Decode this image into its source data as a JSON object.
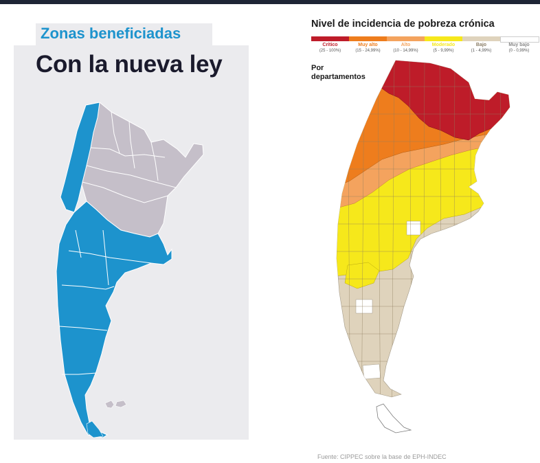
{
  "left": {
    "title": "Zonas beneficiadas",
    "subtitle": "Con la nueva ley",
    "colors": {
      "benefited": "#1d93cd",
      "other": "#c5bfc9",
      "background": "#ebebee"
    }
  },
  "right": {
    "title": "Nivel de incidencia de pobreza crónica",
    "subtitle_line1": "Por",
    "subtitle_line2": "departamentos",
    "legend": [
      {
        "label": "Crítico",
        "range": "(25 - 100%)",
        "color": "#be1c29"
      },
      {
        "label": "Muy alto",
        "range": "(15 - 24,99%)",
        "color": "#ee7d1d"
      },
      {
        "label": "Alto",
        "range": "(10 - 14,99%)",
        "color": "#f4a35e"
      },
      {
        "label": "Moderado",
        "range": "(5 - 9,99%)",
        "color": "#f6e81b"
      },
      {
        "label": "Bajo",
        "range": "(1 - 4,99%)",
        "color": "#dfd3bc"
      },
      {
        "label": "Muy bajo",
        "range": "(0 - 0,99%)",
        "color": "#ffffff"
      }
    ],
    "source": "Fuente: CIPPEC sobre la base de EPH-INDEC"
  }
}
